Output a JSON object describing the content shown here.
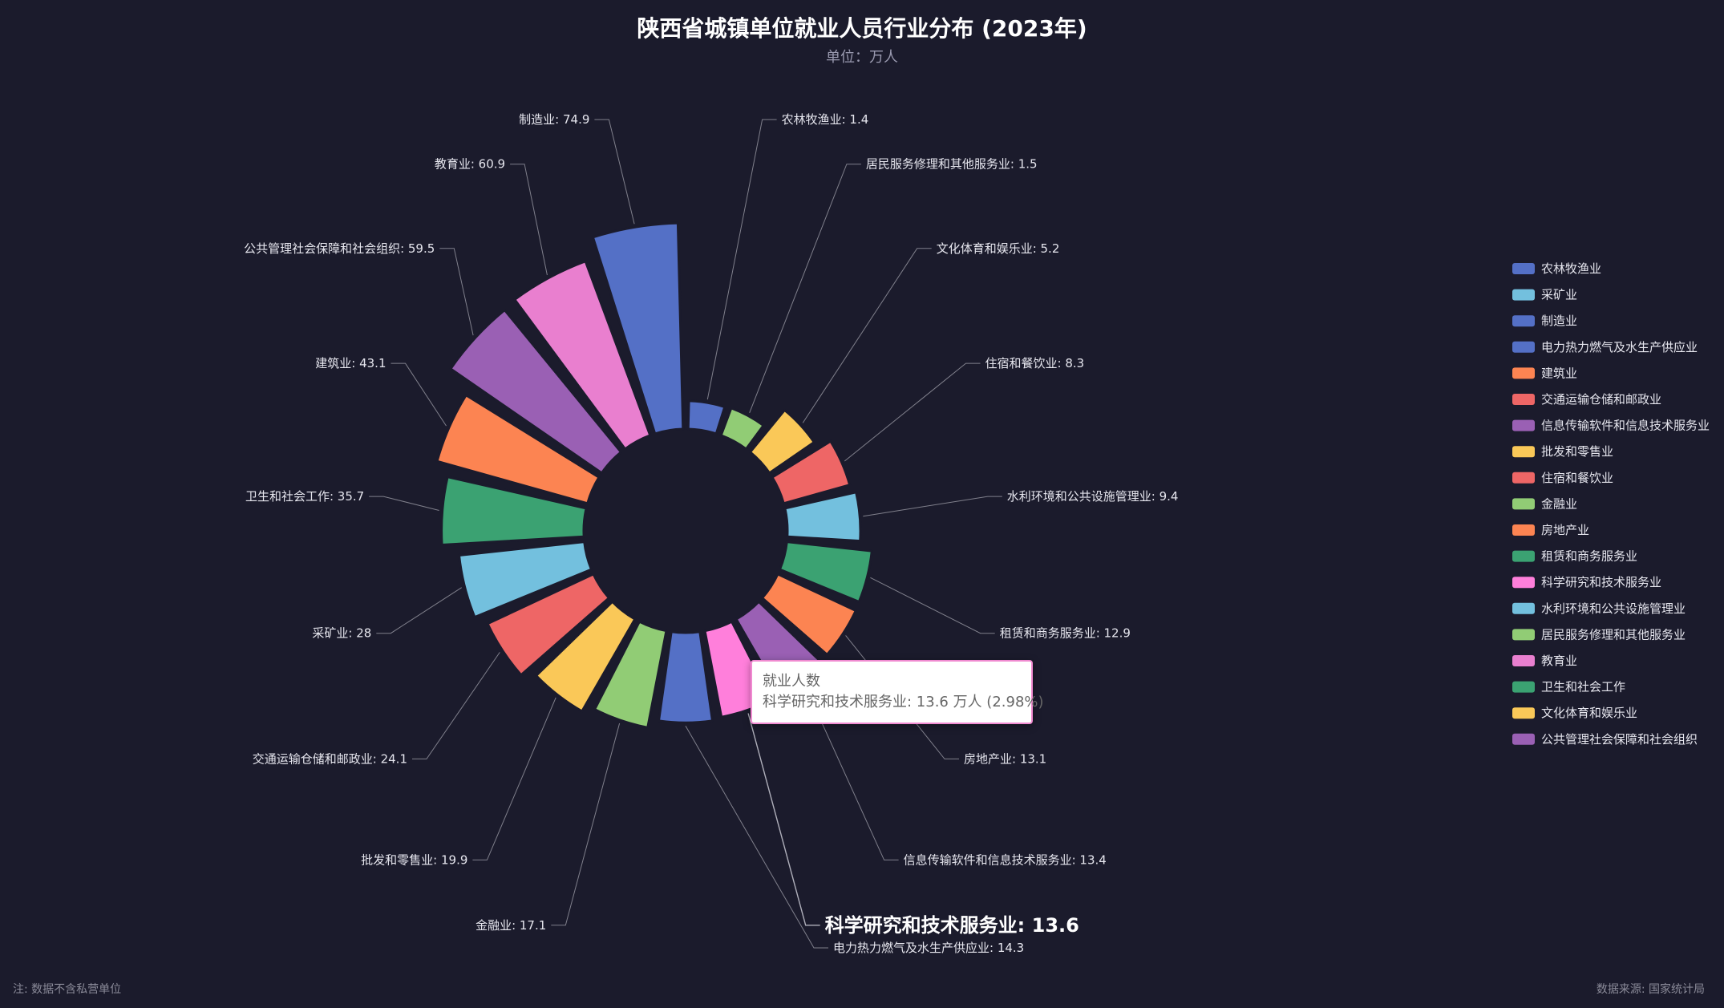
{
  "chart_data": {
    "type": "pie",
    "subtype": "nightingale-rose",
    "title": "陕西省城镇单位就业人员行业分布 (2023年)",
    "subtitle": "单位：万人",
    "series_name": "就业人数",
    "unit": "万人",
    "slices": [
      {
        "name": "农林牧渔业",
        "value": 1.4,
        "color": "#5470c6"
      },
      {
        "name": "居民服务修理和其他服务业",
        "value": 1.5,
        "color": "#91cc75"
      },
      {
        "name": "文化体育和娱乐业",
        "value": 5.2,
        "color": "#fac858"
      },
      {
        "name": "住宿和餐饮业",
        "value": 8.3,
        "color": "#ee6666"
      },
      {
        "name": "水利环境和公共设施管理业",
        "value": 9.4,
        "color": "#73c0de"
      },
      {
        "name": "租赁和商务服务业",
        "value": 12.9,
        "color": "#3ba272"
      },
      {
        "name": "房地产业",
        "value": 13.1,
        "color": "#fc8452"
      },
      {
        "name": "信息传输软件和信息技术服务业",
        "value": 13.4,
        "color": "#9a60b4"
      },
      {
        "name": "科学研究和技术服务业",
        "value": 13.6,
        "color": "#ff7fdb"
      },
      {
        "name": "电力热力燃气及水生产供应业",
        "value": 14.3,
        "color": "#5470c6"
      },
      {
        "name": "金融业",
        "value": 17.1,
        "color": "#91cc75"
      },
      {
        "name": "批发和零售业",
        "value": 19.9,
        "color": "#fac858"
      },
      {
        "name": "交通运输仓储和邮政业",
        "value": 24.1,
        "color": "#ee6666"
      },
      {
        "name": "采矿业",
        "value": 28,
        "color": "#73c0de"
      },
      {
        "name": "卫生和社会工作",
        "value": 35.7,
        "color": "#3ba272"
      },
      {
        "name": "建筑业",
        "value": 43.1,
        "color": "#fc8452"
      },
      {
        "name": "公共管理社会保障和社会组织",
        "value": 59.5,
        "color": "#9a60b4"
      },
      {
        "name": "教育业",
        "value": 60.9,
        "color": "#e97fcf"
      },
      {
        "name": "制造业",
        "value": 74.9,
        "color": "#5470c6"
      }
    ],
    "emphasized_slice": "科学研究和技术服务业",
    "legend": {
      "position": "right",
      "items": [
        {
          "name": "农林牧渔业",
          "color": "#5470c6"
        },
        {
          "name": "采矿业",
          "color": "#73c0de"
        },
        {
          "name": "制造业",
          "color": "#5470c6"
        },
        {
          "name": "电力热力燃气及水生产供应业",
          "color": "#5470c6"
        },
        {
          "name": "建筑业",
          "color": "#fc8452"
        },
        {
          "name": "交通运输仓储和邮政业",
          "color": "#ee6666"
        },
        {
          "name": "信息传输软件和信息技术服务业",
          "color": "#9a60b4"
        },
        {
          "name": "批发和零售业",
          "color": "#fac858"
        },
        {
          "name": "住宿和餐饮业",
          "color": "#ee6666"
        },
        {
          "name": "金融业",
          "color": "#91cc75"
        },
        {
          "name": "房地产业",
          "color": "#fc8452"
        },
        {
          "name": "租赁和商务服务业",
          "color": "#3ba272"
        },
        {
          "name": "科学研究和技术服务业",
          "color": "#ff7fdb"
        },
        {
          "name": "水利环境和公共设施管理业",
          "color": "#73c0de"
        },
        {
          "name": "居民服务修理和其他服务业",
          "color": "#91cc75"
        },
        {
          "name": "教育业",
          "color": "#e97fcf"
        },
        {
          "name": "卫生和社会工作",
          "color": "#3ba272"
        },
        {
          "name": "文化体育和娱乐业",
          "color": "#fac858"
        },
        {
          "name": "公共管理社会保障和社会组织",
          "color": "#9a60b4"
        }
      ]
    }
  },
  "tooltip": {
    "title": "就业人数",
    "body": "科学研究和技术服务业: 13.6 万人 (2.98%)"
  },
  "footer": {
    "note": "注: 数据不含私营单位",
    "source": "数据来源: 国家统计局"
  }
}
